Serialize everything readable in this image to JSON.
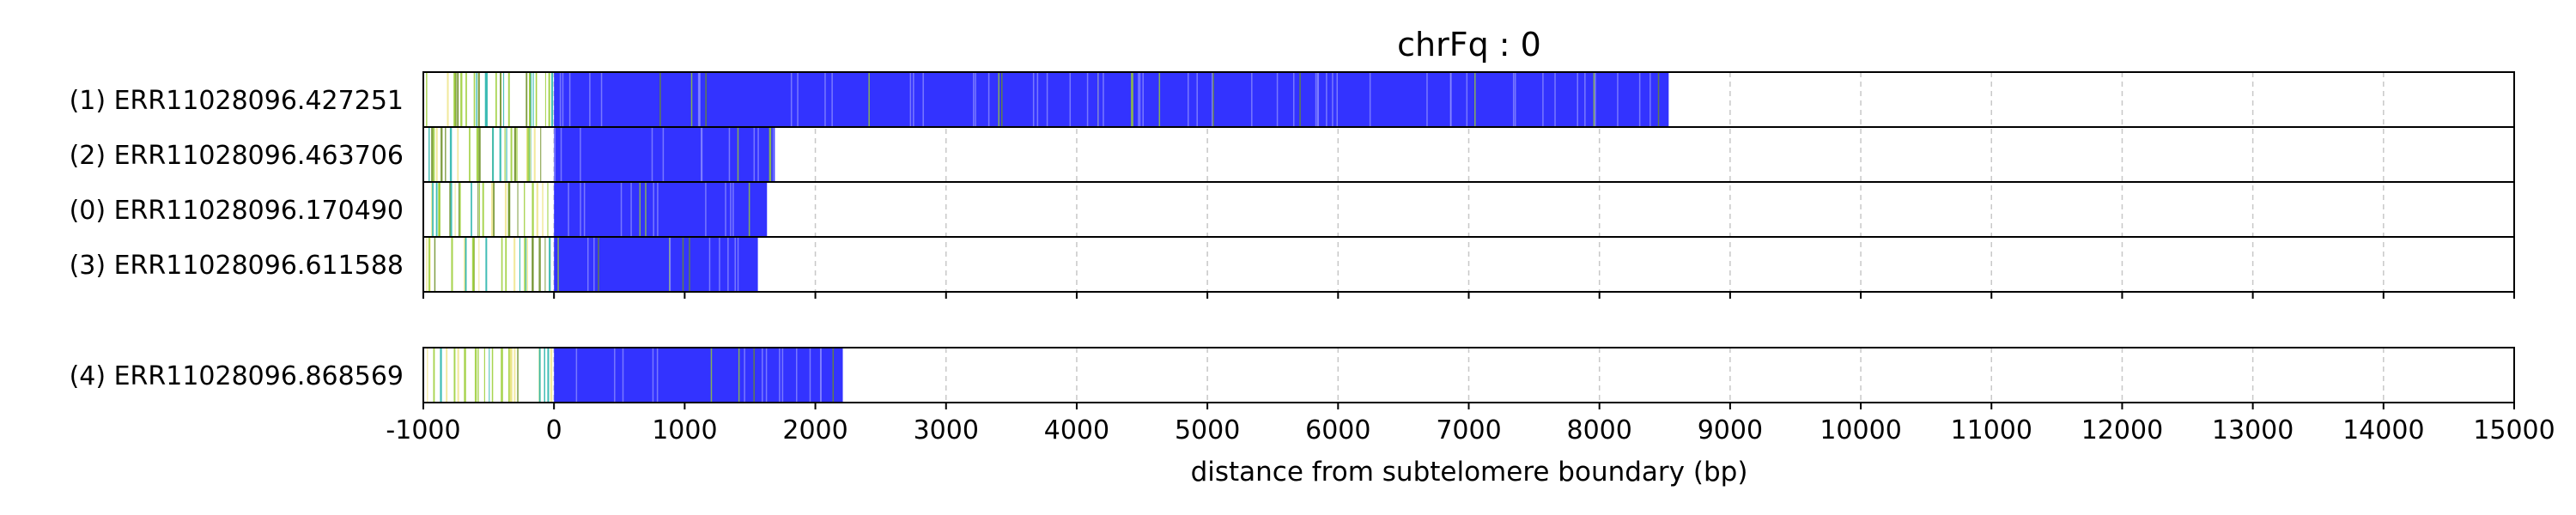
{
  "chart_data": {
    "type": "bar",
    "title": "chrFq : 0",
    "xlabel": "distance from subtelomere boundary (bp)",
    "xlim": [
      -1000,
      15000
    ],
    "xticks": [
      -1000,
      0,
      1000,
      2000,
      3000,
      4000,
      5000,
      6000,
      7000,
      8000,
      9000,
      10000,
      11000,
      12000,
      13000,
      14000,
      15000
    ],
    "xtick_labels": [
      "-1000",
      "0",
      "1000",
      "2000",
      "3000",
      "4000",
      "5000",
      "6000",
      "7000",
      "8000",
      "9000",
      "10000",
      "11000",
      "12000",
      "13000",
      "14000",
      "15000"
    ],
    "grid": "vertical dashed",
    "colors": {
      "telomeric_repeat": "#3333ff",
      "subtelomere_features": [
        "#6b8e23",
        "#9acd32",
        "#20b2aa",
        "#f0e68c"
      ]
    },
    "groups": [
      {
        "reads": [
          {
            "label": "(1) ERR11028096.427251",
            "end": 8530
          },
          {
            "label": "(2) ERR11028096.463706",
            "end": 1690
          },
          {
            "label": "(0) ERR11028096.170490",
            "end": 1630
          },
          {
            "label": "(3) ERR11028096.611588",
            "end": 1560
          }
        ]
      },
      {
        "reads": [
          {
            "label": "(4) ERR11028096.868569",
            "end": 2210
          }
        ]
      }
    ]
  }
}
